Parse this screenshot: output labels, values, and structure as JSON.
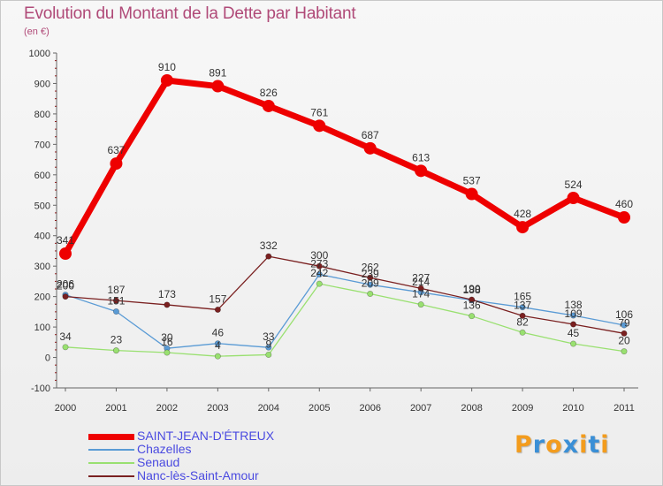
{
  "chart_data": {
    "type": "line",
    "title": "Evolution du Montant de la Dette par Habitant",
    "subtitle": "(en €)",
    "x": [
      "2000",
      "2001",
      "2002",
      "2003",
      "2004",
      "2005",
      "2006",
      "2007",
      "2008",
      "2009",
      "2010",
      "2011"
    ],
    "ylim": [
      -100,
      1000
    ],
    "yticks": [
      "-100",
      "0",
      "100",
      "200",
      "300",
      "400",
      "500",
      "600",
      "700",
      "800",
      "900",
      "1000"
    ],
    "grid": false,
    "legend_position": "bottom-left",
    "series": [
      {
        "name": "SAINT-JEAN-D'ÉTREUX",
        "color": "#ee0000",
        "values": [
          341,
          637,
          910,
          891,
          826,
          761,
          687,
          613,
          537,
          428,
          524,
          460
        ],
        "labels": [
          "341",
          "637",
          "910",
          "891",
          "826",
          "761",
          "687",
          "613",
          "537",
          "428",
          "524",
          "460"
        ]
      },
      {
        "name": "Chazelles",
        "color": "#5a9bd5",
        "values": [
          206,
          151,
          30,
          46,
          33,
          273,
          239,
          214,
          188,
          165,
          138,
          106
        ],
        "labels": [
          "206",
          "151",
          "30",
          "46",
          "33",
          "273",
          "239",
          "214",
          "188",
          "165",
          "138",
          "106"
        ]
      },
      {
        "name": "Senaud",
        "color": "#99e070",
        "values": [
          34,
          23,
          16,
          4,
          9,
          242,
          209,
          174,
          136,
          82,
          45,
          20
        ],
        "labels": [
          "34",
          "23",
          "16",
          "4",
          "9",
          "242",
          "209",
          "174",
          "136",
          "82",
          "45",
          "20"
        ]
      },
      {
        "name": "Nanc-lès-Saint-Amour",
        "color": "#7a2020",
        "values": [
          200,
          187,
          173,
          157,
          332,
          300,
          262,
          227,
          190,
          137,
          109,
          79
        ],
        "labels": [
          "200",
          "187",
          "173",
          "157",
          "332",
          "300",
          "262",
          "227",
          "190",
          "137",
          "109",
          "79"
        ]
      }
    ]
  },
  "logo": {
    "letters": [
      "P",
      "r",
      "o",
      "x",
      "i",
      "t",
      "i"
    ],
    "colors": [
      "#f39c1d",
      "#3a8fd6",
      "#f39c1d",
      "#3a8fd6",
      "#f39c1d",
      "#3a8fd6",
      "#f39c1d"
    ]
  }
}
